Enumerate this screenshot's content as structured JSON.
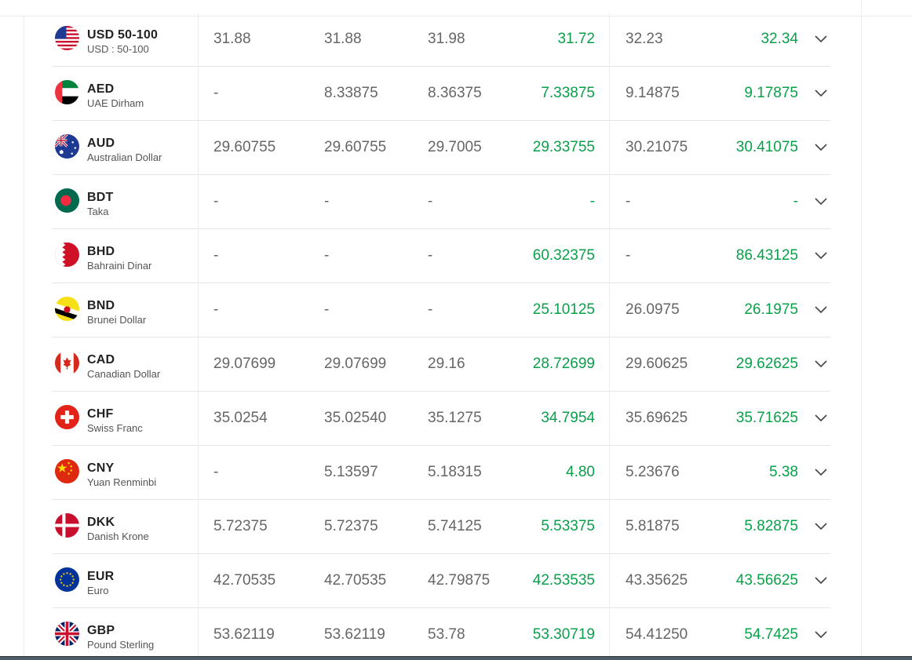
{
  "colors": {
    "positive": "#0aa04a",
    "neutral": "#666666",
    "divider": "#e6e6e6"
  },
  "rows": [
    {
      "code": "USD  50-100",
      "name": "USD : 50-100",
      "flag": "us-flag-icon",
      "values": [
        "31.88",
        "31.88",
        "31.98",
        "31.72",
        "32.23",
        "32.34"
      ]
    },
    {
      "code": "AED",
      "name": "UAE Dirham",
      "flag": "uae-flag-icon",
      "values": [
        "-",
        "8.33875",
        "8.36375",
        "7.33875",
        "9.14875",
        "9.17875"
      ]
    },
    {
      "code": "AUD",
      "name": "Australian Dollar",
      "flag": "australia-flag-icon",
      "values": [
        "29.60755",
        "29.60755",
        "29.7005",
        "29.33755",
        "30.21075",
        "30.41075"
      ]
    },
    {
      "code": "BDT",
      "name": "Taka",
      "flag": "bangladesh-flag-icon",
      "values": [
        "-",
        "-",
        "-",
        "-",
        "-",
        "-"
      ]
    },
    {
      "code": "BHD",
      "name": "Bahraini Dinar",
      "flag": "bahrain-flag-icon",
      "values": [
        "-",
        "-",
        "-",
        "60.32375",
        "-",
        "86.43125"
      ]
    },
    {
      "code": "BND",
      "name": "Brunei Dollar",
      "flag": "brunei-flag-icon",
      "values": [
        "-",
        "-",
        "-",
        "25.10125",
        "26.0975",
        "26.1975"
      ]
    },
    {
      "code": "CAD",
      "name": "Canadian Dollar",
      "flag": "canada-flag-icon",
      "values": [
        "29.07699",
        "29.07699",
        "29.16",
        "28.72699",
        "29.60625",
        "29.62625"
      ]
    },
    {
      "code": "CHF",
      "name": "Swiss Franc",
      "flag": "switzerland-flag-icon",
      "values": [
        "35.0254",
        "35.02540",
        "35.1275",
        "34.7954",
        "35.69625",
        "35.71625"
      ]
    },
    {
      "code": "CNY",
      "name": "Yuan Renminbi",
      "flag": "china-flag-icon",
      "values": [
        "-",
        "5.13597",
        "5.18315",
        "4.80",
        "5.23676",
        "5.38"
      ]
    },
    {
      "code": "DKK",
      "name": "Danish Krone",
      "flag": "denmark-flag-icon",
      "values": [
        "5.72375",
        "5.72375",
        "5.74125",
        "5.53375",
        "5.81875",
        "5.82875"
      ]
    },
    {
      "code": "EUR",
      "name": "Euro",
      "flag": "eu-flag-icon",
      "values": [
        "42.70535",
        "42.70535",
        "42.79875",
        "42.53535",
        "43.35625",
        "43.56625"
      ]
    },
    {
      "code": "GBP",
      "name": "Pound Sterling",
      "flag": "uk-flag-icon",
      "values": [
        "53.62119",
        "53.62119",
        "53.78",
        "53.30719",
        "54.41250",
        "54.7425"
      ]
    }
  ]
}
